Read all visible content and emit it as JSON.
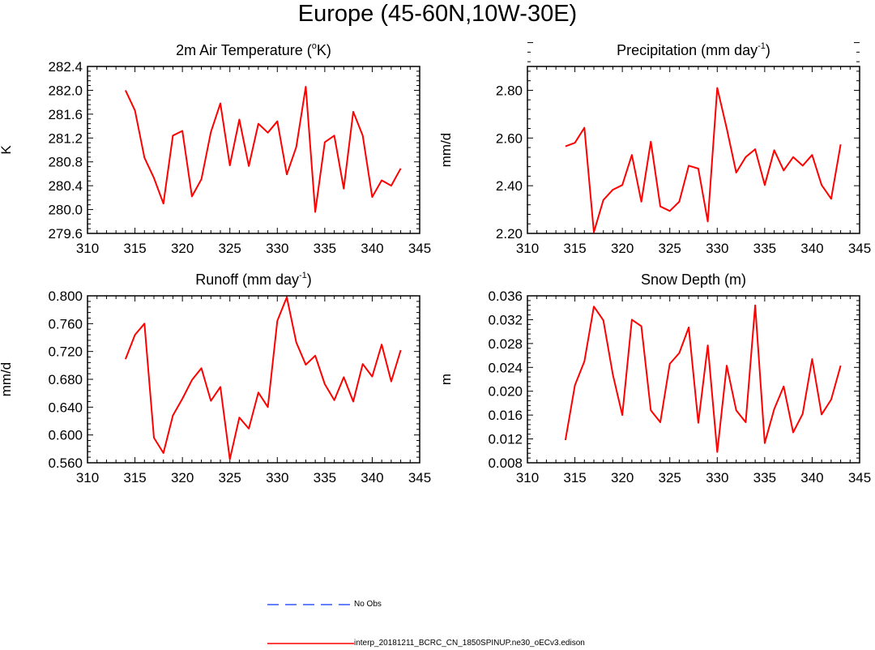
{
  "figure_title": "Europe (45-60N,10W-30E)",
  "colors": {
    "model_line": "#ff0000",
    "obs_line": "#3355ff",
    "axis": "#000000"
  },
  "legend": {
    "entries": [
      {
        "label": "No Obs",
        "style": "dashed",
        "color": "#3355ff"
      },
      {
        "label": "interp_20181211_BCRC_CN_1850SPINUP.ne30_oECv3.edison",
        "style": "solid",
        "color": "#ff0000"
      }
    ]
  },
  "chart_data": [
    {
      "type": "line",
      "title_main": "2m Air Temperature (",
      "title_sup": "o",
      "title_end": "K)",
      "ylabel": "K",
      "xlim": [
        310,
        345
      ],
      "ylim": [
        279.6,
        282.4
      ],
      "xticks": [
        310,
        315,
        320,
        325,
        330,
        335,
        340,
        345
      ],
      "yticks": [
        279.6,
        280.0,
        280.4,
        280.8,
        281.2,
        281.6,
        282.0,
        282.4
      ],
      "ytick_labels": [
        "279.6",
        "280.0",
        "280.4",
        "280.8",
        "281.2",
        "281.6",
        "282.0",
        "282.4"
      ],
      "series": [
        {
          "name": "interp_20181211_BCRC_CN_1850SPINUP.ne30_oECv3.edison",
          "x": [
            314,
            315,
            316,
            317,
            318,
            319,
            320,
            321,
            322,
            323,
            324,
            325,
            326,
            327,
            328,
            329,
            330,
            331,
            332,
            333,
            334,
            335,
            336,
            337,
            338,
            339,
            340,
            341,
            342,
            343
          ],
          "y": [
            282.0,
            281.66,
            280.87,
            280.53,
            280.1,
            281.24,
            281.32,
            280.22,
            280.51,
            281.3,
            281.78,
            280.74,
            281.51,
            280.73,
            281.44,
            281.29,
            281.48,
            280.59,
            281.05,
            282.06,
            279.96,
            281.13,
            281.24,
            280.35,
            281.64,
            281.24,
            280.21,
            280.49,
            280.4,
            280.69
          ]
        }
      ]
    },
    {
      "type": "line",
      "title_main": "Precipitation (mm day",
      "title_sup": "-1",
      "title_end": ")",
      "ylabel": "mm/d",
      "xlim": [
        310,
        345
      ],
      "ylim": [
        2.2,
        2.9
      ],
      "xticks": [
        310,
        315,
        320,
        325,
        330,
        335,
        340,
        345
      ],
      "yticks": [
        2.2,
        2.4,
        2.6,
        2.8
      ],
      "ytick_labels": [
        "2.20",
        "2.40",
        "2.60",
        "2.80"
      ],
      "series": [
        {
          "name": "interp_20181211_BCRC_CN_1850SPINUP.ne30_oECv3.edison",
          "x": [
            314,
            315,
            316,
            317,
            318,
            319,
            320,
            321,
            322,
            323,
            324,
            325,
            326,
            327,
            328,
            329,
            330,
            331,
            332,
            333,
            334,
            335,
            336,
            337,
            338,
            339,
            340,
            341,
            342,
            343
          ],
          "y": [
            2.565,
            2.58,
            2.643,
            2.205,
            2.34,
            2.383,
            2.403,
            2.529,
            2.333,
            2.585,
            2.313,
            2.294,
            2.333,
            2.484,
            2.472,
            2.25,
            2.81,
            2.64,
            2.455,
            2.52,
            2.553,
            2.403,
            2.549,
            2.464,
            2.52,
            2.484,
            2.529,
            2.403,
            2.345,
            2.573
          ]
        }
      ]
    },
    {
      "type": "line",
      "title_main": "Runoff (mm day",
      "title_sup": "-1",
      "title_end": ")",
      "ylabel": "mm/d",
      "xlim": [
        310,
        345
      ],
      "ylim": [
        0.56,
        0.8
      ],
      "xticks": [
        310,
        315,
        320,
        325,
        330,
        335,
        340,
        345
      ],
      "yticks": [
        0.56,
        0.6,
        0.64,
        0.68,
        0.72,
        0.76,
        0.8
      ],
      "ytick_labels": [
        "0.560",
        "0.600",
        "0.640",
        "0.680",
        "0.720",
        "0.760",
        "0.800"
      ],
      "series": [
        {
          "name": "interp_20181211_BCRC_CN_1850SPINUP.ne30_oECv3.edison",
          "x": [
            314,
            315,
            316,
            317,
            318,
            319,
            320,
            321,
            322,
            323,
            324,
            325,
            326,
            327,
            328,
            329,
            330,
            331,
            332,
            333,
            334,
            335,
            336,
            337,
            338,
            339,
            340,
            341,
            342,
            343
          ],
          "y": [
            0.709,
            0.744,
            0.76,
            0.596,
            0.574,
            0.628,
            0.652,
            0.679,
            0.696,
            0.649,
            0.669,
            0.565,
            0.625,
            0.609,
            0.661,
            0.64,
            0.764,
            0.798,
            0.733,
            0.701,
            0.714,
            0.673,
            0.65,
            0.683,
            0.648,
            0.702,
            0.684,
            0.73,
            0.677,
            0.722
          ]
        }
      ]
    },
    {
      "type": "line",
      "title_main": "Snow Depth (m)",
      "title_sup": "",
      "title_end": "",
      "ylabel": "m",
      "xlim": [
        310,
        345
      ],
      "ylim": [
        0.008,
        0.036
      ],
      "xticks": [
        310,
        315,
        320,
        325,
        330,
        335,
        340,
        345
      ],
      "yticks": [
        0.008,
        0.012,
        0.016,
        0.02,
        0.024,
        0.028,
        0.032,
        0.036
      ],
      "ytick_labels": [
        "0.008",
        "0.012",
        "0.016",
        "0.020",
        "0.024",
        "0.028",
        "0.032",
        "0.036"
      ],
      "series": [
        {
          "name": "interp_20181211_BCRC_CN_1850SPINUP.ne30_oECv3.edison",
          "x": [
            314,
            315,
            316,
            317,
            318,
            319,
            320,
            321,
            322,
            323,
            324,
            325,
            326,
            327,
            328,
            329,
            330,
            331,
            332,
            333,
            334,
            335,
            336,
            337,
            338,
            339,
            340,
            341,
            342,
            343
          ],
          "y": [
            0.0118,
            0.021,
            0.025,
            0.0342,
            0.0319,
            0.0228,
            0.016,
            0.032,
            0.0309,
            0.0168,
            0.0148,
            0.0246,
            0.0264,
            0.0307,
            0.0147,
            0.0277,
            0.0098,
            0.0243,
            0.0168,
            0.0148,
            0.0344,
            0.0113,
            0.017,
            0.0208,
            0.0131,
            0.0162,
            0.0254,
            0.0161,
            0.0186,
            0.0243
          ]
        }
      ]
    }
  ]
}
